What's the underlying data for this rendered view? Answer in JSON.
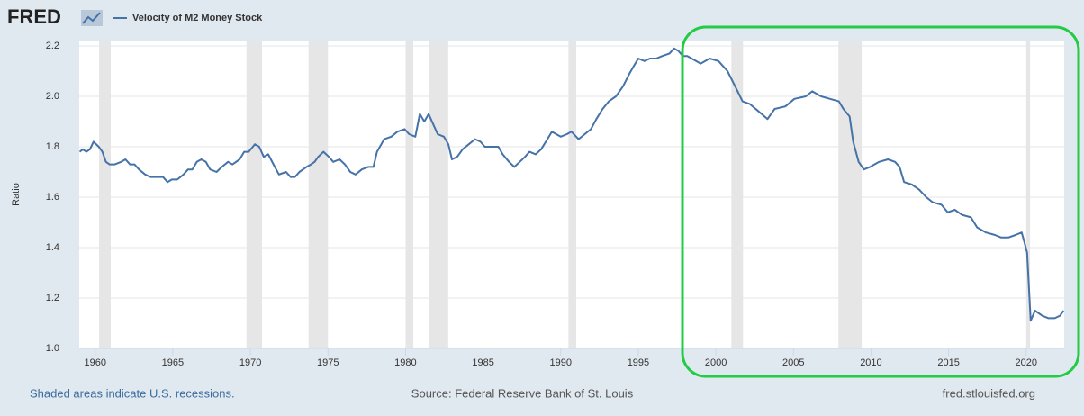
{
  "chart_data": {
    "type": "line",
    "logo": "FRED",
    "ylabel": "Ratio",
    "note": "Shaded areas indicate U.S. recessions.",
    "source": "Source: Federal Reserve Bank of St. Louis",
    "site": "fred.stlouisfed.org",
    "xlim": [
      1958.97,
      2022.45
    ],
    "ylim": [
      1.0,
      2.2
    ],
    "xticks": [
      1960,
      1965,
      1970,
      1975,
      1980,
      1985,
      1990,
      1995,
      2000,
      2005,
      2010,
      2015,
      2020
    ],
    "yticks": [
      {
        "value": 1.0,
        "label": "1.0"
      },
      1.2,
      1.4,
      1.6,
      1.8,
      {
        "value": 2.0,
        "label": "2.0"
      },
      2.2
    ],
    "grid": true,
    "recession_color": "#e6e6e6",
    "recessions": [
      {
        "start": 1960.25,
        "end": 1961.0
      },
      {
        "start": 1969.75,
        "end": 1970.75
      },
      {
        "start": 1973.75,
        "end": 1975.0
      },
      {
        "start": 1980.0,
        "end": 1980.5
      },
      {
        "start": 1981.5,
        "end": 1982.75
      },
      {
        "start": 1990.5,
        "end": 1991.0
      },
      {
        "start": 2001.0,
        "end": 2001.75
      },
      {
        "start": 2007.9,
        "end": 2009.4
      },
      {
        "start": 2020.0,
        "end": 2020.25
      }
    ],
    "series": [
      {
        "name": "Velocity of M2 Money Stock",
        "color": "#4572a7",
        "x": [
          1959.0,
          1959.2,
          1959.43,
          1959.66,
          1959.89,
          1960.23,
          1960.46,
          1960.69,
          1960.92,
          1961.26,
          1961.67,
          1961.95,
          1962.24,
          1962.53,
          1962.82,
          1963.22,
          1963.56,
          1963.85,
          1964.14,
          1964.37,
          1964.66,
          1964.94,
          1965.29,
          1965.69,
          1965.98,
          1966.26,
          1966.55,
          1966.84,
          1967.13,
          1967.41,
          1967.82,
          1968.16,
          1968.56,
          1968.85,
          1969.31,
          1969.6,
          1969.89,
          1970.29,
          1970.57,
          1970.86,
          1971.15,
          1971.49,
          1971.84,
          1972.3,
          1972.59,
          1972.87,
          1973.16,
          1973.62,
          1973.91,
          1974.14,
          1974.37,
          1974.71,
          1975.06,
          1975.34,
          1975.75,
          1976.09,
          1976.44,
          1976.78,
          1977.18,
          1977.59,
          1977.93,
          1978.16,
          1978.62,
          1979.08,
          1979.48,
          1979.94,
          1980.23,
          1980.63,
          1980.92,
          1981.21,
          1981.49,
          1981.78,
          1982.07,
          1982.47,
          1982.76,
          1982.99,
          1983.33,
          1983.68,
          1984.08,
          1984.48,
          1984.83,
          1985.11,
          1985.52,
          1985.98,
          1986.26,
          1986.67,
          1987.01,
          1987.36,
          1987.7,
          1987.99,
          1988.39,
          1988.74,
          1989.14,
          1989.43,
          1989.71,
          1990.0,
          1990.4,
          1990.69,
          1991.15,
          1991.55,
          1991.95,
          1992.3,
          1992.7,
          1993.1,
          1993.56,
          1994.02,
          1994.43,
          1994.71,
          1995.0,
          1995.4,
          1995.75,
          1996.15,
          1996.55,
          1997.01,
          1997.3,
          1997.59,
          1997.87,
          1998.16,
          1999.02,
          1999.6,
          2000.17,
          2000.75,
          2001.32,
          2001.72,
          2002.18,
          2002.76,
          2003.33,
          2003.79,
          2004.48,
          2005.06,
          2005.8,
          2006.21,
          2006.78,
          2007.36,
          2007.93,
          2008.22,
          2008.62,
          2008.85,
          2009.2,
          2009.54,
          2009.94,
          2010.52,
          2011.09,
          2011.55,
          2011.84,
          2012.13,
          2012.64,
          2013.1,
          2013.56,
          2013.97,
          2014.54,
          2014.94,
          2015.4,
          2015.86,
          2016.44,
          2016.84,
          2017.41,
          2017.99,
          2018.39,
          2018.85,
          2019.31,
          2019.71,
          2019.89,
          2020.06,
          2020.29,
          2020.57,
          2021.03,
          2021.44,
          2021.84,
          2022.18,
          2022.41
        ],
        "values": [
          1.78,
          1.79,
          1.78,
          1.79,
          1.82,
          1.8,
          1.78,
          1.74,
          1.73,
          1.73,
          1.74,
          1.75,
          1.73,
          1.73,
          1.71,
          1.69,
          1.68,
          1.68,
          1.68,
          1.68,
          1.66,
          1.67,
          1.67,
          1.69,
          1.71,
          1.71,
          1.74,
          1.75,
          1.74,
          1.71,
          1.7,
          1.72,
          1.74,
          1.73,
          1.75,
          1.78,
          1.78,
          1.81,
          1.8,
          1.76,
          1.77,
          1.73,
          1.69,
          1.7,
          1.68,
          1.68,
          1.7,
          1.72,
          1.73,
          1.74,
          1.76,
          1.78,
          1.76,
          1.74,
          1.75,
          1.73,
          1.7,
          1.69,
          1.71,
          1.72,
          1.72,
          1.78,
          1.83,
          1.84,
          1.86,
          1.87,
          1.85,
          1.84,
          1.93,
          1.9,
          1.93,
          1.89,
          1.85,
          1.84,
          1.81,
          1.75,
          1.76,
          1.79,
          1.81,
          1.83,
          1.82,
          1.8,
          1.8,
          1.8,
          1.77,
          1.74,
          1.72,
          1.74,
          1.76,
          1.78,
          1.77,
          1.79,
          1.83,
          1.86,
          1.85,
          1.84,
          1.85,
          1.86,
          1.83,
          1.85,
          1.87,
          1.91,
          1.95,
          1.98,
          2.0,
          2.04,
          2.09,
          2.12,
          2.15,
          2.14,
          2.15,
          2.15,
          2.16,
          2.17,
          2.19,
          2.18,
          2.16,
          2.16,
          2.13,
          2.15,
          2.14,
          2.1,
          2.03,
          1.98,
          1.97,
          1.94,
          1.91,
          1.95,
          1.96,
          1.99,
          2.0,
          2.02,
          2.0,
          1.99,
          1.98,
          1.95,
          1.92,
          1.82,
          1.74,
          1.71,
          1.72,
          1.74,
          1.75,
          1.74,
          1.72,
          1.66,
          1.65,
          1.63,
          1.6,
          1.58,
          1.57,
          1.54,
          1.55,
          1.53,
          1.52,
          1.48,
          1.46,
          1.45,
          1.44,
          1.44,
          1.45,
          1.46,
          1.42,
          1.38,
          1.11,
          1.15,
          1.13,
          1.12,
          1.12,
          1.13,
          1.15
        ]
      }
    ]
  }
}
